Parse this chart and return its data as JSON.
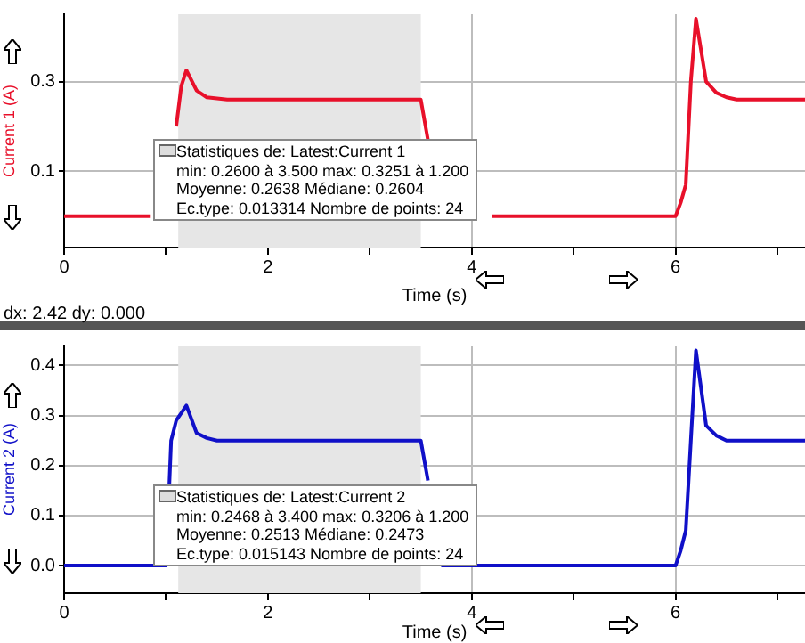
{
  "chart_data": [
    {
      "type": "line",
      "xlabel": "Time (s)",
      "ylabel": "Current 1 (A)",
      "xlim": [
        0,
        7.27
      ],
      "ylim": [
        -0.07,
        0.45
      ],
      "xticks": [
        0,
        {
          "value": 1,
          "label": null
        },
        2,
        {
          "value": 3,
          "label": null
        },
        4,
        {
          "value": 5,
          "label": null
        },
        6,
        {
          "value": 7,
          "label": null
        }
      ],
      "yticks": [
        0.1,
        0.3
      ],
      "grid": true,
      "legend": false,
      "marker": "none",
      "line_style": "solid",
      "bands": [
        {
          "axis": "x",
          "from": 1.12,
          "to": 3.5,
          "label": null,
          "color": "#e6e6e6"
        }
      ],
      "series": [
        {
          "color": "#e8102a",
          "x": [
            0,
            0.85,
            1.0,
            1.1,
            1.15,
            1.2,
            1.3,
            1.4,
            1.6,
            3.5,
            3.57,
            3.7,
            4.2,
            6.0,
            6.05,
            6.1,
            6.15,
            6.2,
            6.3,
            6.4,
            6.5,
            6.6,
            7.27
          ],
          "values": [
            0,
            0,
            null,
            0.2,
            0.29,
            0.325,
            0.28,
            0.265,
            0.26,
            0.26,
            0.17,
            null,
            0,
            0,
            0.03,
            0.07,
            0.3,
            0.44,
            0.3,
            0.275,
            0.265,
            0.26,
            0.26
          ]
        }
      ],
      "annotations": [
        "Statistiques de: Latest:Current 1",
        "min: 0.2600 à 3.500 max: 0.3251 à 1.200",
        "Moyenne: 0.2638 Médiane: 0.2604",
        "Ec.type: 0.013314 Nombre de points: 24",
        "dx: 2.42 dy: 0.000"
      ]
    },
    {
      "type": "line",
      "xlabel": "Time (s)",
      "ylabel": "Current 2 (A)",
      "xlim": [
        0,
        7.27
      ],
      "ylim": [
        -0.055,
        0.44
      ],
      "xticks": [
        0,
        {
          "value": 1,
          "label": null
        },
        2,
        {
          "value": 3,
          "label": null
        },
        4,
        {
          "value": 5,
          "label": null
        },
        6,
        {
          "value": 7,
          "label": null
        }
      ],
      "yticks": [
        {
          "value": 0,
          "label": "0.0"
        },
        0.1,
        0.2,
        0.3,
        0.4
      ],
      "grid": true,
      "legend": false,
      "marker": "none",
      "line_style": "solid",
      "bands": [
        {
          "axis": "x",
          "from": 1.12,
          "to": 3.5,
          "label": null,
          "color": "#e6e6e6"
        }
      ],
      "series": [
        {
          "color": "#1010c8",
          "x": [
            0,
            1.0,
            1.05,
            1.1,
            1.2,
            1.3,
            1.4,
            1.5,
            3.5,
            3.57,
            3.6,
            3.7,
            6.0,
            6.05,
            6.1,
            6.15,
            6.2,
            6.3,
            6.4,
            6.5,
            7.27
          ],
          "values": [
            0,
            0,
            0.25,
            0.29,
            0.32,
            0.265,
            0.255,
            0.25,
            0.25,
            0.17,
            null,
            0,
            0,
            0.03,
            0.07,
            0.25,
            0.43,
            0.28,
            0.26,
            0.25,
            0.25
          ]
        }
      ],
      "annotations": [
        "Statistiques de: Latest:Current 2",
        "min: 0.2468 à 3.400 max: 0.3206 à 1.200",
        "Moyenne: 0.2513 Médiane: 0.2473",
        "Ec.type: 0.015143 Nombre de points: 24"
      ]
    }
  ]
}
